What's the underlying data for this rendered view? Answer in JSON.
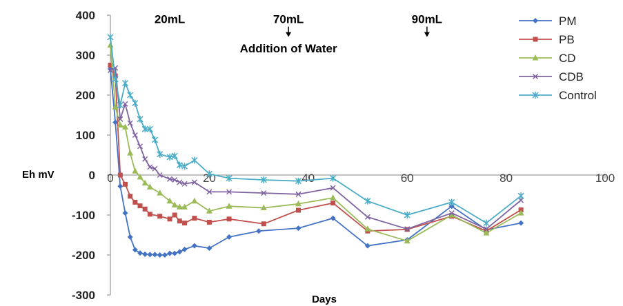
{
  "chart_data": {
    "type": "line",
    "xlabel": "Days",
    "ylabel": "Eh mV",
    "xlim": [
      0,
      100
    ],
    "ylim": [
      -300,
      400
    ],
    "xticks": [
      "0",
      "20",
      "40",
      "60",
      "80",
      "100"
    ],
    "yticks": [
      "400",
      "300",
      "200",
      "100",
      "0",
      "-100",
      "-200",
      "-300"
    ],
    "grid": false,
    "legend_position": "top-right",
    "annotations": [
      {
        "text": "20mL",
        "x": 12,
        "y": 380
      },
      {
        "text": "70mL",
        "x": 36,
        "y": 380,
        "arrow": true
      },
      {
        "text": "Addition  of Water",
        "x": 36,
        "y": 307
      },
      {
        "text": "90mL",
        "x": 64,
        "y": 380,
        "arrow": true
      }
    ],
    "series": [
      {
        "name": "PM",
        "color": "#4472C4",
        "marker": "diamond",
        "points": [
          [
            0,
            265
          ],
          [
            1,
            132
          ],
          [
            2,
            -28
          ],
          [
            3,
            -95
          ],
          [
            4,
            -155
          ],
          [
            5,
            -187
          ],
          [
            6,
            -195
          ],
          [
            7,
            -198
          ],
          [
            8,
            -199
          ],
          [
            9,
            -199
          ],
          [
            10,
            -200
          ],
          [
            11,
            -200
          ],
          [
            12,
            -196
          ],
          [
            13,
            -196
          ],
          [
            14,
            -192
          ],
          [
            15,
            -186
          ],
          [
            17,
            -177
          ],
          [
            20,
            -183
          ],
          [
            24,
            -155
          ],
          [
            30,
            -140
          ],
          [
            38,
            -133
          ],
          [
            45,
            -108
          ],
          [
            52,
            -177
          ],
          [
            60,
            -162
          ],
          [
            69,
            -78
          ],
          [
            76,
            -137
          ],
          [
            83,
            -120
          ]
        ]
      },
      {
        "name": "PB",
        "color": "#C0504D",
        "marker": "square",
        "points": [
          [
            0,
            275
          ],
          [
            1,
            248
          ],
          [
            2,
            0
          ],
          [
            3,
            -23
          ],
          [
            4,
            -53
          ],
          [
            5,
            -68
          ],
          [
            6,
            -77
          ],
          [
            7,
            -85
          ],
          [
            8,
            -98
          ],
          [
            10,
            -103
          ],
          [
            12,
            -110
          ],
          [
            13,
            -100
          ],
          [
            14,
            -115
          ],
          [
            15,
            -120
          ],
          [
            17,
            -108
          ],
          [
            20,
            -118
          ],
          [
            24,
            -110
          ],
          [
            31,
            -122
          ],
          [
            38,
            -88
          ],
          [
            45,
            -70
          ],
          [
            52,
            -140
          ],
          [
            60,
            -136
          ],
          [
            69,
            -103
          ],
          [
            76,
            -140
          ],
          [
            83,
            -87
          ]
        ]
      },
      {
        "name": "CD",
        "color": "#9BBB59",
        "marker": "triangle",
        "points": [
          [
            0,
            325
          ],
          [
            1,
            170
          ],
          [
            2,
            125
          ],
          [
            3,
            120
          ],
          [
            4,
            55
          ],
          [
            5,
            10
          ],
          [
            6,
            -5
          ],
          [
            7,
            -20
          ],
          [
            8,
            -30
          ],
          [
            10,
            -45
          ],
          [
            12,
            -65
          ],
          [
            13,
            -75
          ],
          [
            14,
            -80
          ],
          [
            15,
            -80
          ],
          [
            17,
            -65
          ],
          [
            20,
            -90
          ],
          [
            24,
            -78
          ],
          [
            31,
            -82
          ],
          [
            38,
            -72
          ],
          [
            45,
            -57
          ],
          [
            52,
            -135
          ],
          [
            60,
            -165
          ],
          [
            69,
            -100
          ],
          [
            76,
            -145
          ],
          [
            83,
            -95
          ]
        ]
      },
      {
        "name": "CDB",
        "color": "#8064A2",
        "marker": "x",
        "points": [
          [
            0,
            262
          ],
          [
            1,
            268
          ],
          [
            2,
            140
          ],
          [
            3,
            178
          ],
          [
            4,
            130
          ],
          [
            5,
            100
          ],
          [
            6,
            72
          ],
          [
            7,
            40
          ],
          [
            8,
            20
          ],
          [
            9,
            16
          ],
          [
            10,
            0
          ],
          [
            12,
            -10
          ],
          [
            13,
            -12
          ],
          [
            14,
            -18
          ],
          [
            15,
            -22
          ],
          [
            17,
            -18
          ],
          [
            20,
            -42
          ],
          [
            24,
            -42
          ],
          [
            31,
            -45
          ],
          [
            38,
            -48
          ],
          [
            45,
            -32
          ],
          [
            52,
            -105
          ],
          [
            60,
            -135
          ],
          [
            69,
            -95
          ],
          [
            76,
            -135
          ],
          [
            83,
            -63
          ]
        ]
      },
      {
        "name": "Control",
        "color": "#4BACC6",
        "marker": "star",
        "points": [
          [
            0,
            345
          ],
          [
            1,
            240
          ],
          [
            2,
            175
          ],
          [
            3,
            230
          ],
          [
            4,
            200
          ],
          [
            5,
            180
          ],
          [
            6,
            140
          ],
          [
            7,
            115
          ],
          [
            8,
            115
          ],
          [
            9,
            88
          ],
          [
            10,
            52
          ],
          [
            12,
            45
          ],
          [
            13,
            48
          ],
          [
            14,
            25
          ],
          [
            15,
            22
          ],
          [
            17,
            37
          ],
          [
            20,
            3
          ],
          [
            24,
            -8
          ],
          [
            31,
            -12
          ],
          [
            38,
            -15
          ],
          [
            45,
            -8
          ],
          [
            52,
            -65
          ],
          [
            60,
            -100
          ],
          [
            69,
            -68
          ],
          [
            76,
            -120
          ],
          [
            83,
            -52
          ]
        ]
      }
    ]
  }
}
